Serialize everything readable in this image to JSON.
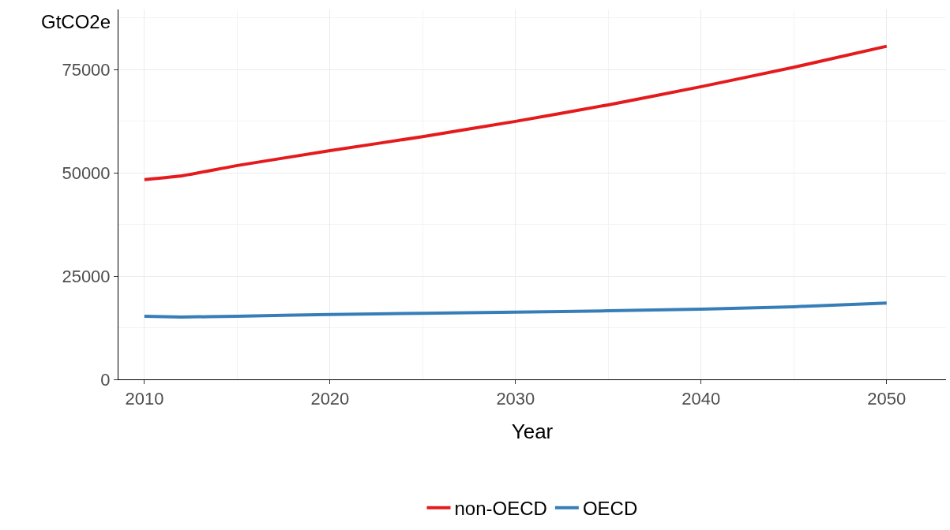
{
  "chart_data": {
    "type": "line",
    "xlabel": "Year",
    "ylabel": "GtCO2e",
    "xlim": [
      2008.6,
      2053.2
    ],
    "xticks": [
      2010,
      2020,
      2030,
      2040,
      2050
    ],
    "ylim": [
      0,
      89600
    ],
    "yticks": [
      0,
      25000,
      50000,
      75000
    ],
    "grid": true,
    "legend": "bottom",
    "marker": "none",
    "line_style": "solid",
    "series": [
      {
        "name": "non-OECD",
        "color": "#e41a1c",
        "x": [
          2010,
          2012,
          2015,
          2020,
          2025,
          2030,
          2035,
          2040,
          2045,
          2050
        ],
        "values": [
          48400,
          49300,
          51800,
          55400,
          58800,
          62500,
          66500,
          70900,
          75600,
          80700
        ]
      },
      {
        "name": "OECD",
        "color": "#377eb8",
        "x": [
          2010,
          2012,
          2015,
          2020,
          2025,
          2030,
          2035,
          2040,
          2045,
          2050
        ],
        "values": [
          15300,
          15100,
          15300,
          15700,
          16000,
          16300,
          16600,
          17000,
          17600,
          18500
        ]
      }
    ]
  }
}
